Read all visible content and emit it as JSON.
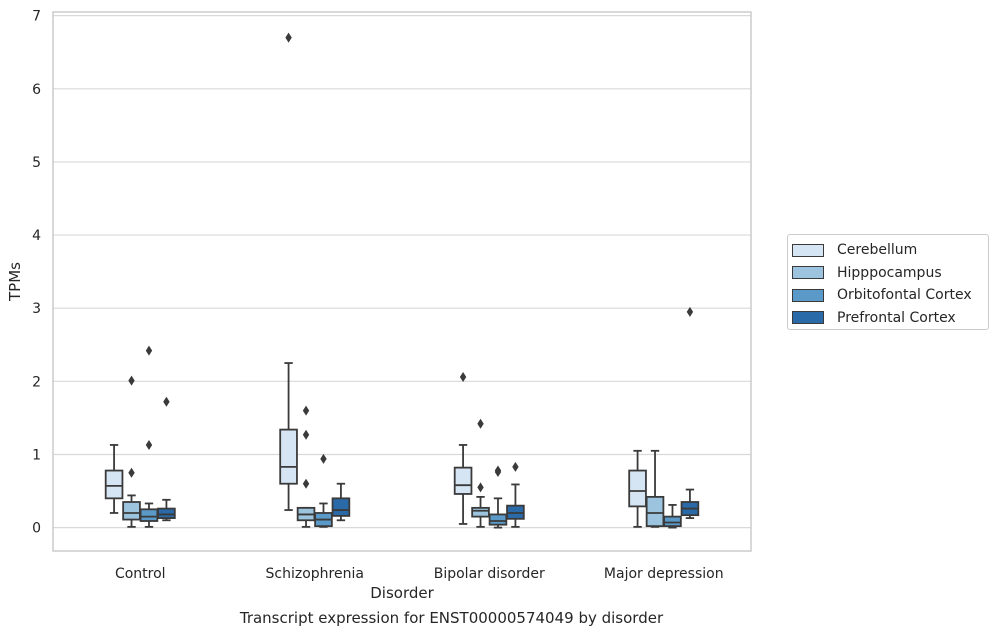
{
  "caption": "Transcript expression for ENST00000574049 by disorder",
  "colors": {
    "grid": "#d9d9d9",
    "frame": "#cccccc",
    "line": "#3a3a3a"
  },
  "chart_data": {
    "type": "boxplot",
    "xlabel": "Disorder",
    "ylabel": "TPMs",
    "ylim": [
      -0.32,
      7.05
    ],
    "yticks": [
      0,
      1,
      2,
      3,
      4,
      5,
      6,
      7
    ],
    "grid": true,
    "legend_position": "right",
    "categories": [
      "Control",
      "Schizophrenia",
      "Bipolar disorder",
      "Major depression"
    ],
    "series": [
      {
        "name": "Cerebellum",
        "color": "#d6e5f3",
        "boxes": [
          {
            "whisker_low": 0.2,
            "q1": 0.4,
            "median": 0.57,
            "q3": 0.78,
            "whisker_high": 1.13,
            "outliers": []
          },
          {
            "whisker_low": 0.24,
            "q1": 0.6,
            "median": 0.83,
            "q3": 1.34,
            "whisker_high": 2.25,
            "outliers": [
              6.7
            ]
          },
          {
            "whisker_low": 0.05,
            "q1": 0.46,
            "median": 0.58,
            "q3": 0.82,
            "whisker_high": 1.13,
            "outliers": [
              2.06
            ]
          },
          {
            "whisker_low": 0.01,
            "q1": 0.29,
            "median": 0.5,
            "q3": 0.78,
            "whisker_high": 1.05,
            "outliers": []
          }
        ]
      },
      {
        "name": "Hipppocampus",
        "color": "#9cc4de",
        "boxes": [
          {
            "whisker_low": 0.01,
            "q1": 0.11,
            "median": 0.2,
            "q3": 0.35,
            "whisker_high": 0.44,
            "outliers": [
              0.75,
              2.01
            ]
          },
          {
            "whisker_low": 0.01,
            "q1": 0.1,
            "median": 0.18,
            "q3": 0.27,
            "whisker_high": 0.27,
            "outliers": [
              0.6,
              1.27,
              1.6
            ]
          },
          {
            "whisker_low": 0.01,
            "q1": 0.15,
            "median": 0.23,
            "q3": 0.27,
            "whisker_high": 0.42,
            "outliers": [
              0.55,
              1.42
            ]
          },
          {
            "whisker_low": 0.01,
            "q1": 0.02,
            "median": 0.2,
            "q3": 0.42,
            "whisker_high": 1.05,
            "outliers": []
          }
        ]
      },
      {
        "name": "Orbitofontal Cortex",
        "color": "#5b9ac8",
        "boxes": [
          {
            "whisker_low": 0.01,
            "q1": 0.09,
            "median": 0.15,
            "q3": 0.25,
            "whisker_high": 0.33,
            "outliers": [
              1.13,
              2.42
            ]
          },
          {
            "whisker_low": 0.01,
            "q1": 0.02,
            "median": 0.11,
            "q3": 0.2,
            "whisker_high": 0.33,
            "outliers": [
              0.94
            ]
          },
          {
            "whisker_low": 0.0,
            "q1": 0.04,
            "median": 0.09,
            "q3": 0.18,
            "whisker_high": 0.4,
            "outliers": [
              0.76,
              0.78
            ]
          },
          {
            "whisker_low": 0.0,
            "q1": 0.02,
            "median": 0.07,
            "q3": 0.15,
            "whisker_high": 0.31,
            "outliers": []
          }
        ]
      },
      {
        "name": "Prefrontal Cortex",
        "color": "#2b6aa8",
        "boxes": [
          {
            "whisker_low": 0.1,
            "q1": 0.13,
            "median": 0.18,
            "q3": 0.26,
            "whisker_high": 0.38,
            "outliers": [
              1.72
            ]
          },
          {
            "whisker_low": 0.1,
            "q1": 0.16,
            "median": 0.24,
            "q3": 0.4,
            "whisker_high": 0.6,
            "outliers": []
          },
          {
            "whisker_low": 0.01,
            "q1": 0.12,
            "median": 0.2,
            "q3": 0.3,
            "whisker_high": 0.59,
            "outliers": [
              0.83
            ]
          },
          {
            "whisker_low": 0.13,
            "q1": 0.17,
            "median": 0.26,
            "q3": 0.35,
            "whisker_high": 0.52,
            "outliers": [
              2.95
            ]
          }
        ]
      }
    ]
  }
}
